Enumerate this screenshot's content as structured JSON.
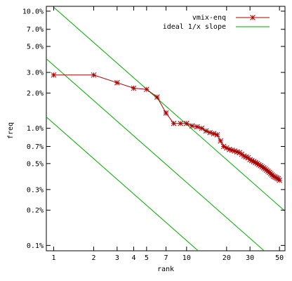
{
  "chart_data": {
    "type": "line",
    "xlabel": "rank",
    "ylabel": "freq",
    "xscale": "log",
    "yscale": "log",
    "xlim": [
      0.88,
      55
    ],
    "ylim": [
      0.09,
      11.0
    ],
    "x_ticks": [
      1,
      2,
      3,
      4,
      5,
      7,
      10,
      20,
      30,
      50
    ],
    "x_tick_labels": [
      "1",
      "2",
      "3",
      "4",
      "5",
      "7",
      "10",
      "20",
      "30",
      "50"
    ],
    "y_ticks": [
      0.1,
      0.2,
      0.3,
      0.5,
      0.7,
      1.0,
      2.0,
      3.0,
      5.0,
      7.0,
      10.0
    ],
    "y_tick_labels": [
      "0.1%",
      "0.2%",
      "0.3%",
      "0.5%",
      "0.7%",
      "1.0%",
      "2.0%",
      "3.0%",
      "5.0%",
      "7.0%",
      "10.0%"
    ],
    "grid": false,
    "legend_position": "top-right",
    "series": [
      {
        "name": "vmix-enq",
        "color": "#aa0000",
        "marker": "star",
        "x": [
          1,
          2,
          3,
          4,
          5,
          6,
          7,
          8,
          9,
          10,
          11,
          12,
          13,
          14,
          15,
          16,
          17,
          18,
          19,
          20,
          21,
          22,
          23,
          24,
          25,
          26,
          27,
          28,
          29,
          30,
          31,
          32,
          33,
          34,
          35,
          36,
          37,
          38,
          39,
          40,
          41,
          42,
          43,
          44,
          45,
          46,
          47,
          48,
          49,
          50
        ],
        "y": [
          2.85,
          2.85,
          2.45,
          2.2,
          2.15,
          1.85,
          1.35,
          1.1,
          1.1,
          1.1,
          1.05,
          1.03,
          1.0,
          0.95,
          0.92,
          0.9,
          0.88,
          0.78,
          0.7,
          0.68,
          0.66,
          0.65,
          0.64,
          0.63,
          0.62,
          0.6,
          0.58,
          0.57,
          0.56,
          0.54,
          0.53,
          0.52,
          0.51,
          0.5,
          0.49,
          0.48,
          0.47,
          0.46,
          0.45,
          0.44,
          0.43,
          0.42,
          0.41,
          0.4,
          0.39,
          0.385,
          0.38,
          0.375,
          0.37,
          0.36
        ]
      }
    ],
    "reference_lines": [
      {
        "name": "ideal 1/x slope",
        "color": "#00aa00",
        "coefficient": 10.8,
        "show_in_legend": true
      },
      {
        "name": "",
        "color": "#00aa00",
        "coefficient": 3.45,
        "show_in_legend": false
      },
      {
        "name": "",
        "color": "#00aa00",
        "coefficient": 1.1,
        "show_in_legend": false
      }
    ]
  }
}
